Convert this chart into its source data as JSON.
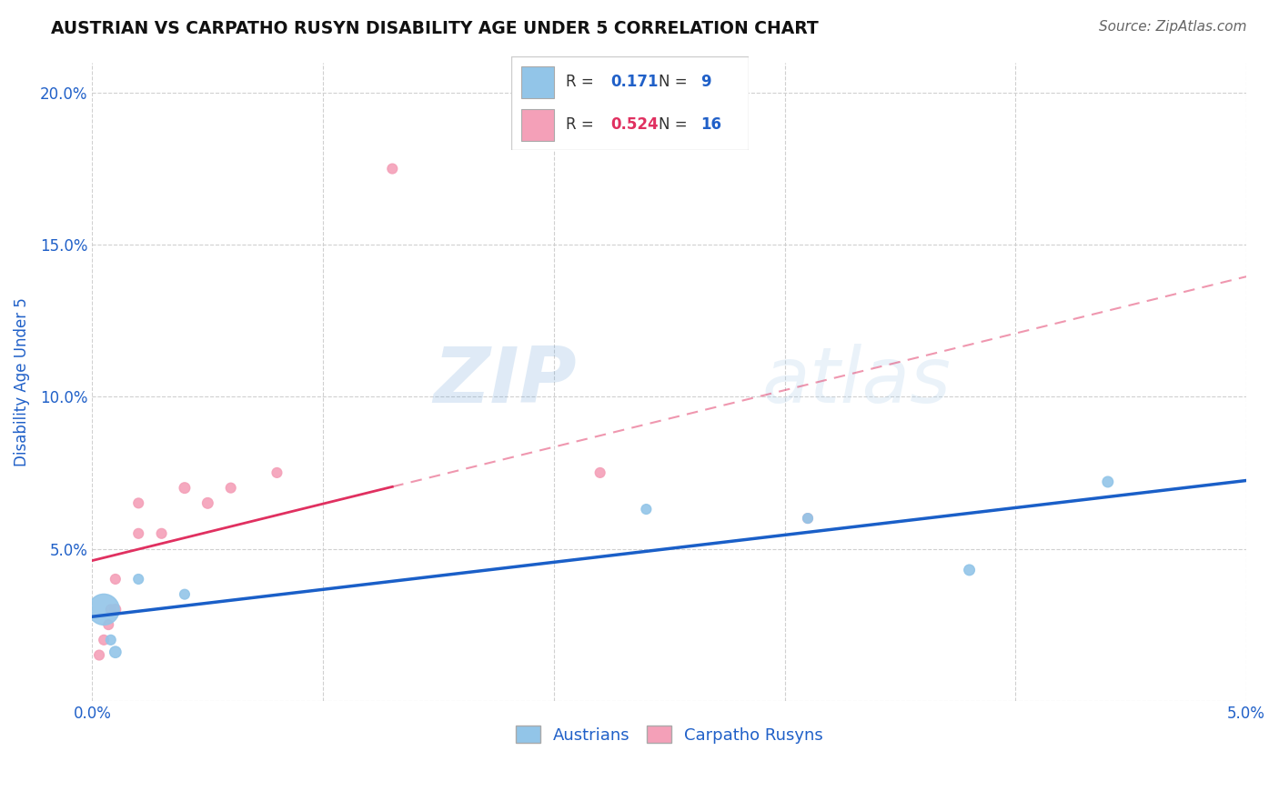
{
  "title": "AUSTRIAN VS CARPATHO RUSYN DISABILITY AGE UNDER 5 CORRELATION CHART",
  "source": "Source: ZipAtlas.com",
  "ylabel": "Disability Age Under 5",
  "watermark_zip": "ZIP",
  "watermark_atlas": "atlas",
  "xlim": [
    0.0,
    0.05
  ],
  "ylim": [
    0.0,
    0.21
  ],
  "xtick_vals": [
    0.0,
    0.01,
    0.02,
    0.03,
    0.04,
    0.05
  ],
  "ytick_vals": [
    0.0,
    0.05,
    0.1,
    0.15,
    0.2
  ],
  "xtick_labels": [
    "0.0%",
    "",
    "",
    "",
    "",
    "5.0%"
  ],
  "ytick_labels": [
    "",
    "5.0%",
    "10.0%",
    "15.0%",
    "20.0%"
  ],
  "legend_austrians": "Austrians",
  "legend_carpatho": "Carpatho Rusyns",
  "R_austrians": "0.171",
  "N_austrians": "9",
  "R_carpatho": "0.524",
  "N_carpatho": "16",
  "color_austrians": "#92c5e8",
  "color_carpatho": "#f4a0b8",
  "line_color_austrians": "#1a5fc8",
  "line_color_carpatho": "#e03060",
  "austrians_x": [
    0.0005,
    0.001,
    0.002,
    0.004,
    0.024,
    0.031,
    0.038,
    0.044,
    0.0008
  ],
  "austrians_y": [
    0.03,
    0.016,
    0.04,
    0.035,
    0.063,
    0.06,
    0.043,
    0.072,
    0.02
  ],
  "austrians_size": [
    600,
    80,
    60,
    60,
    60,
    60,
    70,
    70,
    60
  ],
  "carpatho_x": [
    0.0003,
    0.0005,
    0.0007,
    0.0008,
    0.001,
    0.001,
    0.002,
    0.002,
    0.003,
    0.004,
    0.005,
    0.006,
    0.008,
    0.013,
    0.022,
    0.031
  ],
  "carpatho_y": [
    0.015,
    0.02,
    0.025,
    0.03,
    0.03,
    0.04,
    0.055,
    0.065,
    0.055,
    0.07,
    0.065,
    0.07,
    0.075,
    0.175,
    0.075,
    0.06
  ],
  "carpatho_size": [
    60,
    60,
    60,
    60,
    70,
    60,
    60,
    60,
    60,
    70,
    70,
    60,
    60,
    60,
    60,
    60
  ],
  "background_color": "#ffffff",
  "grid_color": "#d0d0d0",
  "title_color": "#111111",
  "accent_color": "#2060c8",
  "title_fontsize": 13.5,
  "tick_fontsize": 12,
  "label_fontsize": 12,
  "source_fontsize": 11
}
